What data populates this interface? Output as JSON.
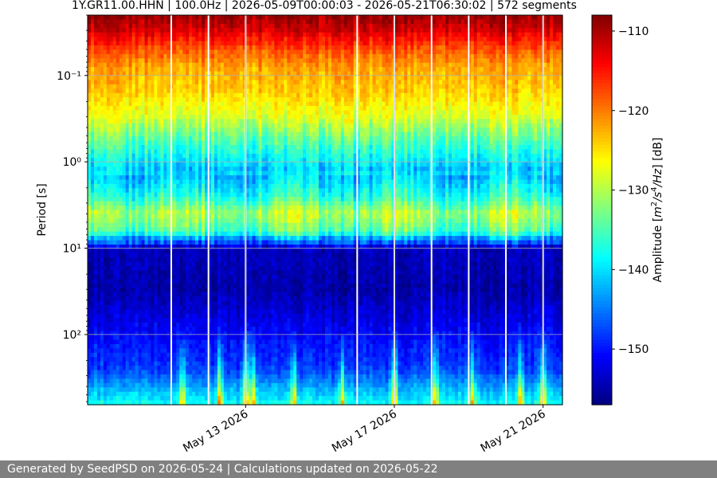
{
  "chart_data": {
    "type": "heatmap",
    "title": "1Y.GR11.00.HHN | 100.0Hz | 2026-05-09T00:00:03 - 2026-05-21T06:30:02 | 572 segments",
    "xlabel": "",
    "ylabel": "Period [s]",
    "y_scale": "log",
    "y_inverted": true,
    "ylim": [
      0.02,
      650
    ],
    "y_tick_labels": [
      "10⁻¹",
      "10⁰",
      "10¹",
      "10²"
    ],
    "y_tick_values": [
      0.1,
      1,
      10,
      100
    ],
    "x_range": [
      "2026-05-09T00:00:03",
      "2026-05-21T06:30:02"
    ],
    "x_tick_labels": [
      "May 13 2026",
      "May 17 2026",
      "May 21 2026"
    ],
    "x_tick_dates": [
      "2026-05-13",
      "2026-05-17",
      "2026-05-21"
    ],
    "colorbar": {
      "label": "Amplitude [m²/s⁴/Hz] [dB]",
      "label_parts": [
        "Amplitude [",
        "m",
        "2",
        "/s",
        "4",
        "/Hz",
        "] [dB]"
      ],
      "range": [
        -157,
        -108
      ],
      "ticks": [
        -110,
        -120,
        -130,
        -140,
        -150
      ],
      "tick_labels": [
        "−110",
        "−120",
        "−130",
        "−140",
        "−150"
      ],
      "colormap": "jet"
    },
    "grid": true,
    "data_gaps": [
      "2026-05-11",
      "2026-05-12",
      "2026-05-13",
      "2026-05-16",
      "2026-05-17",
      "2026-05-18",
      "2026-05-19",
      "2026-05-20",
      "2026-05-21"
    ],
    "median_amplitude_profile": {
      "period_s": [
        0.02,
        0.03,
        0.05,
        0.08,
        0.15,
        0.3,
        0.6,
        1.2,
        2.5,
        4,
        6.5,
        10,
        30,
        100,
        250,
        650
      ],
      "amplitude_db": [
        -109,
        -112,
        -118,
        -122,
        -124,
        -128,
        -135,
        -141,
        -135,
        -128,
        -133,
        -154,
        -155,
        -151,
        -148,
        -138
      ]
    },
    "transient_events_days": [
      2.3,
      3.3,
      4.0,
      4.2,
      5.3,
      6.6,
      8.0,
      9.1,
      10.1,
      11.4,
      12.0
    ],
    "colors": {
      "background": "#ffffff",
      "gap_color": "#ffffff",
      "grid_color": "#b0b0b0"
    }
  },
  "footer": {
    "text": "Generated by SeedPSD on 2026-05-24 | Calculations updated on 2026-05-22",
    "background": "#808080"
  }
}
